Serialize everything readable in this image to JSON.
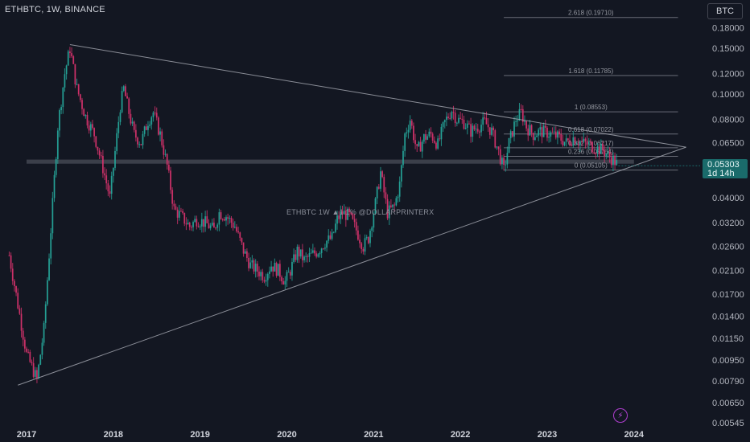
{
  "header": {
    "symbol": "ETHBTC, 1W, BINANCE",
    "currency_button": "BTC"
  },
  "price_tag": {
    "price": "0.05303",
    "countdown": "1d 14h"
  },
  "watermark": "ETHBTC 1W ▲1.1% @DOLLARPRINTERX",
  "icons": {
    "bottom": "lightning-bolt-icon"
  },
  "colors": {
    "background": "#131722",
    "up": "#26a69a",
    "down": "#d6336c",
    "line": "#b2b5be",
    "accent": "#1a6b6b"
  },
  "chart_data": {
    "type": "candlestick",
    "scale": "log",
    "y_ticks": [
      "0.18000",
      "0.15000",
      "0.12000",
      "0.10000",
      "0.08000",
      "0.06500",
      "0.05303",
      "0.04000",
      "0.03200",
      "0.02600",
      "0.02100",
      "0.01700",
      "0.01400",
      "0.01150",
      "0.00950",
      "0.00790",
      "0.00650",
      "0.00545"
    ],
    "x_ticks": [
      "2017",
      "2018",
      "2019",
      "2020",
      "2021",
      "2022",
      "2023",
      "2024"
    ],
    "series": [
      {
        "values": [
          [
            2016.8,
            0.024
          ],
          [
            2017.0,
            0.01
          ],
          [
            2017.12,
            0.008
          ],
          [
            2017.2,
            0.0125
          ],
          [
            2017.28,
            0.03
          ],
          [
            2017.36,
            0.075
          ],
          [
            2017.44,
            0.12
          ],
          [
            2017.5,
            0.15
          ],
          [
            2017.58,
            0.105
          ],
          [
            2017.68,
            0.082
          ],
          [
            2017.78,
            0.07
          ],
          [
            2017.88,
            0.052
          ],
          [
            2017.96,
            0.04
          ],
          [
            2018.02,
            0.06
          ],
          [
            2018.08,
            0.09
          ],
          [
            2018.12,
            0.105
          ],
          [
            2018.18,
            0.085
          ],
          [
            2018.24,
            0.07
          ],
          [
            2018.32,
            0.065
          ],
          [
            2018.4,
            0.079
          ],
          [
            2018.46,
            0.085
          ],
          [
            2018.54,
            0.07
          ],
          [
            2018.62,
            0.053
          ],
          [
            2018.7,
            0.036
          ],
          [
            2018.78,
            0.034
          ],
          [
            2018.88,
            0.031
          ],
          [
            2018.96,
            0.033
          ],
          [
            2019.06,
            0.032
          ],
          [
            2019.16,
            0.03
          ],
          [
            2019.22,
            0.035
          ],
          [
            2019.3,
            0.034
          ],
          [
            2019.4,
            0.031
          ],
          [
            2019.5,
            0.025
          ],
          [
            2019.58,
            0.022
          ],
          [
            2019.66,
            0.021
          ],
          [
            2019.74,
            0.02
          ],
          [
            2019.82,
            0.022
          ],
          [
            2019.9,
            0.021
          ],
          [
            2019.98,
            0.019
          ],
          [
            2020.04,
            0.021
          ],
          [
            2020.12,
            0.025
          ],
          [
            2020.2,
            0.023
          ],
          [
            2020.28,
            0.024
          ],
          [
            2020.36,
            0.025
          ],
          [
            2020.44,
            0.027
          ],
          [
            2020.52,
            0.028
          ],
          [
            2020.58,
            0.033
          ],
          [
            2020.64,
            0.035
          ],
          [
            2020.72,
            0.034
          ],
          [
            2020.8,
            0.03
          ],
          [
            2020.88,
            0.026
          ],
          [
            2020.94,
            0.028
          ],
          [
            2021.02,
            0.038
          ],
          [
            2021.08,
            0.05
          ],
          [
            2021.16,
            0.035
          ],
          [
            2021.24,
            0.037
          ],
          [
            2021.3,
            0.045
          ],
          [
            2021.36,
            0.07
          ],
          [
            2021.42,
            0.08
          ],
          [
            2021.5,
            0.06
          ],
          [
            2021.58,
            0.068
          ],
          [
            2021.66,
            0.07
          ],
          [
            2021.74,
            0.064
          ],
          [
            2021.82,
            0.078
          ],
          [
            2021.9,
            0.087
          ],
          [
            2021.96,
            0.08
          ],
          [
            2022.04,
            0.078
          ],
          [
            2022.12,
            0.072
          ],
          [
            2022.2,
            0.075
          ],
          [
            2022.28,
            0.078
          ],
          [
            2022.36,
            0.072
          ],
          [
            2022.44,
            0.06
          ],
          [
            2022.5,
            0.051
          ],
          [
            2022.56,
            0.065
          ],
          [
            2022.64,
            0.08
          ],
          [
            2022.7,
            0.085
          ],
          [
            2022.76,
            0.075
          ],
          [
            2022.84,
            0.07
          ],
          [
            2022.92,
            0.072
          ],
          [
            2023.0,
            0.071
          ],
          [
            2023.06,
            0.07
          ],
          [
            2023.14,
            0.068
          ],
          [
            2023.22,
            0.065
          ],
          [
            2023.3,
            0.068
          ],
          [
            2023.4,
            0.065
          ],
          [
            2023.48,
            0.064
          ],
          [
            2023.56,
            0.062
          ],
          [
            2023.64,
            0.061
          ],
          [
            2023.7,
            0.058
          ],
          [
            2023.76,
            0.056
          ],
          [
            2023.82,
            0.053
          ]
        ]
      }
    ],
    "trendlines": [
      {
        "from": [
          2017.5,
          0.155
        ],
        "to": [
          2024.6,
          0.0625
        ]
      },
      {
        "from": [
          2016.9,
          0.0076
        ],
        "to": [
          2024.6,
          0.0625
        ]
      }
    ],
    "support_band": [
      0.054,
      0.056
    ],
    "fibonacci": [
      {
        "label": "2.618 (0.19710)",
        "value": 0.1971
      },
      {
        "label": "1.618 (0.11785)",
        "value": 0.11785
      },
      {
        "label": "1 (0.08553)",
        "value": 0.08553
      },
      {
        "label": "0.618 (0.07022)",
        "value": 0.07022
      },
      {
        "label": "0.382 (0.06217)",
        "value": 0.06217
      },
      {
        "label": "0.236 (0.05764)",
        "value": 0.05764
      },
      {
        "label": "0 (0.05105)",
        "value": 0.05105
      }
    ],
    "fib_range": [
      2022.5,
      2024.6
    ]
  }
}
